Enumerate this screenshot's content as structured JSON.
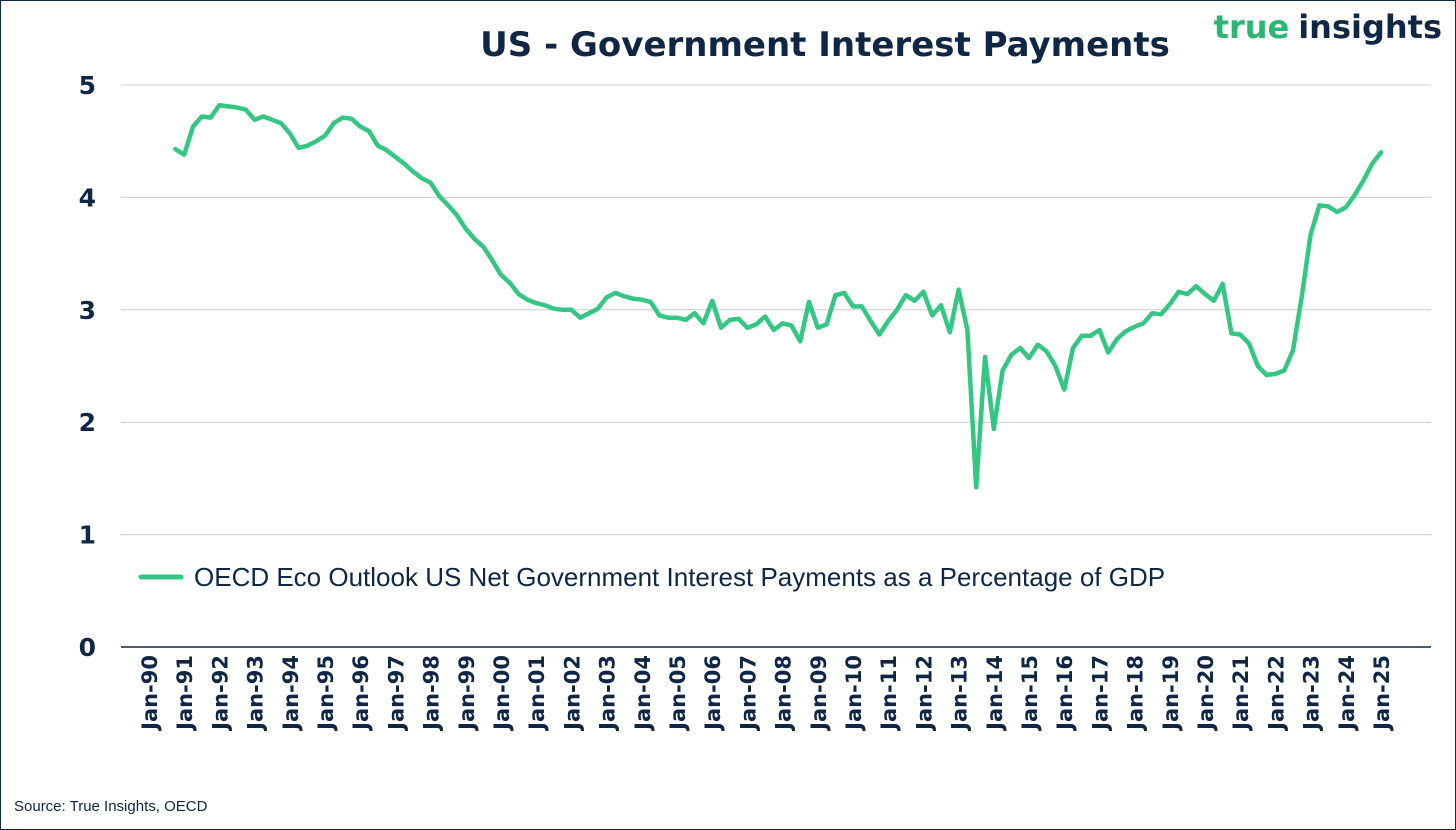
{
  "brand": {
    "word1": "true",
    "word2": "insights",
    "color1": "#2bb673",
    "color2": "#0f2744"
  },
  "source": "Source: True Insights, OECD",
  "colors": {
    "line": "#34c683",
    "text": "#0f2744",
    "grid": "#c8ccd2"
  },
  "chart_data": {
    "type": "line",
    "title": "US - Government Interest Payments",
    "xlabel": "",
    "ylabel": "",
    "ylim": [
      0,
      5
    ],
    "yticks": [
      "0",
      "1",
      "2",
      "3",
      "4",
      "5"
    ],
    "grid": true,
    "legend_position": "center",
    "categories": [
      "Jan-90",
      "Jan-91",
      "Jan-92",
      "Jan-93",
      "Jan-94",
      "Jan-95",
      "Jan-96",
      "Jan-97",
      "Jan-98",
      "Jan-99",
      "Jan-00",
      "Jan-01",
      "Jan-02",
      "Jan-03",
      "Jan-04",
      "Jan-05",
      "Jan-06",
      "Jan-07",
      "Jan-08",
      "Jan-09",
      "Jan-10",
      "Jan-11",
      "Jan-12",
      "Jan-13",
      "Jan-14",
      "Jan-15",
      "Jan-16",
      "Jan-17",
      "Jan-18",
      "Jan-19",
      "Jan-20",
      "Jan-21",
      "Jan-22",
      "Jan-23",
      "Jan-24",
      "Jan-25"
    ],
    "series": [
      {
        "name": "OECD Eco Outlook US Net Government Interest Payments as a Percentage of GDP",
        "x": [
          1990.75,
          1991.0,
          1991.25,
          1991.5,
          1991.75,
          1992.0,
          1992.25,
          1992.5,
          1992.75,
          1993.0,
          1993.25,
          1993.5,
          1993.75,
          1994.0,
          1994.25,
          1994.5,
          1994.75,
          1995.0,
          1995.25,
          1995.5,
          1995.75,
          1996.0,
          1996.25,
          1996.5,
          1996.75,
          1997.0,
          1997.25,
          1997.5,
          1997.75,
          1998.0,
          1998.25,
          1998.5,
          1998.75,
          1999.0,
          1999.25,
          1999.5,
          1999.75,
          2000.0,
          2000.25,
          2000.5,
          2000.75,
          2001.0,
          2001.25,
          2001.5,
          2001.75,
          2002.0,
          2002.25,
          2002.5,
          2002.75,
          2003.0,
          2003.25,
          2003.5,
          2003.75,
          2004.0,
          2004.25,
          2004.5,
          2004.75,
          2005.0,
          2005.25,
          2005.5,
          2005.75,
          2006.0,
          2006.25,
          2006.5,
          2006.75,
          2007.0,
          2007.25,
          2007.5,
          2007.75,
          2008.0,
          2008.25,
          2008.5,
          2008.75,
          2009.0,
          2009.25,
          2009.5,
          2009.75,
          2010.0,
          2010.25,
          2010.5,
          2010.75,
          2011.0,
          2011.25,
          2011.5,
          2011.75,
          2012.0,
          2012.25,
          2012.5,
          2012.75,
          2013.0,
          2013.25,
          2013.5,
          2013.75,
          2014.0,
          2014.25,
          2014.5,
          2014.75,
          2015.0,
          2015.25,
          2015.5,
          2015.75,
          2016.0,
          2016.25,
          2016.5,
          2016.75,
          2017.0,
          2017.25,
          2017.5,
          2017.75,
          2018.0,
          2018.25,
          2018.5,
          2018.75,
          2019.0,
          2019.25,
          2019.5,
          2019.75,
          2020.0,
          2020.25,
          2020.5,
          2020.75,
          2021.0,
          2021.25,
          2021.5,
          2021.75,
          2022.0,
          2022.25,
          2022.5,
          2022.75,
          2023.0,
          2023.25,
          2023.5,
          2023.75,
          2024.0,
          2024.25,
          2024.5,
          2024.75,
          2025.0
        ],
        "values": [
          4.43,
          4.38,
          4.63,
          4.72,
          4.71,
          4.82,
          4.81,
          4.8,
          4.78,
          4.69,
          4.72,
          4.69,
          4.66,
          4.57,
          4.44,
          4.46,
          4.5,
          4.55,
          4.66,
          4.71,
          4.7,
          4.63,
          4.59,
          4.46,
          4.42,
          4.36,
          4.3,
          4.23,
          4.17,
          4.13,
          4.01,
          3.93,
          3.84,
          3.72,
          3.63,
          3.56,
          3.44,
          3.31,
          3.24,
          3.14,
          3.09,
          3.06,
          3.04,
          3.01,
          3.0,
          3.0,
          2.93,
          2.97,
          3.01,
          3.11,
          3.15,
          3.12,
          3.1,
          3.09,
          3.07,
          2.95,
          2.93,
          2.93,
          2.91,
          2.97,
          2.88,
          3.08,
          2.84,
          2.91,
          2.92,
          2.84,
          2.87,
          2.94,
          2.82,
          2.88,
          2.86,
          2.72,
          3.07,
          2.84,
          2.87,
          3.13,
          3.15,
          3.03,
          3.03,
          2.9,
          2.78,
          2.9,
          3.0,
          3.13,
          3.08,
          3.16,
          2.95,
          3.04,
          2.8,
          3.18,
          2.82,
          1.42,
          2.58,
          1.94,
          2.46,
          2.6,
          2.66,
          2.57,
          2.69,
          2.63,
          2.5,
          2.29,
          2.66,
          2.77,
          2.77,
          2.82,
          2.62,
          2.74,
          2.81,
          2.85,
          2.88,
          2.97,
          2.96,
          3.05,
          3.16,
          3.14,
          3.21,
          3.14,
          3.08,
          3.23,
          2.79,
          2.78,
          2.7,
          2.5,
          2.42,
          2.43,
          2.46,
          2.64,
          3.12,
          3.67,
          3.93,
          3.92,
          3.87,
          3.91,
          4.02,
          4.15,
          4.3,
          4.4
        ]
      }
    ]
  }
}
